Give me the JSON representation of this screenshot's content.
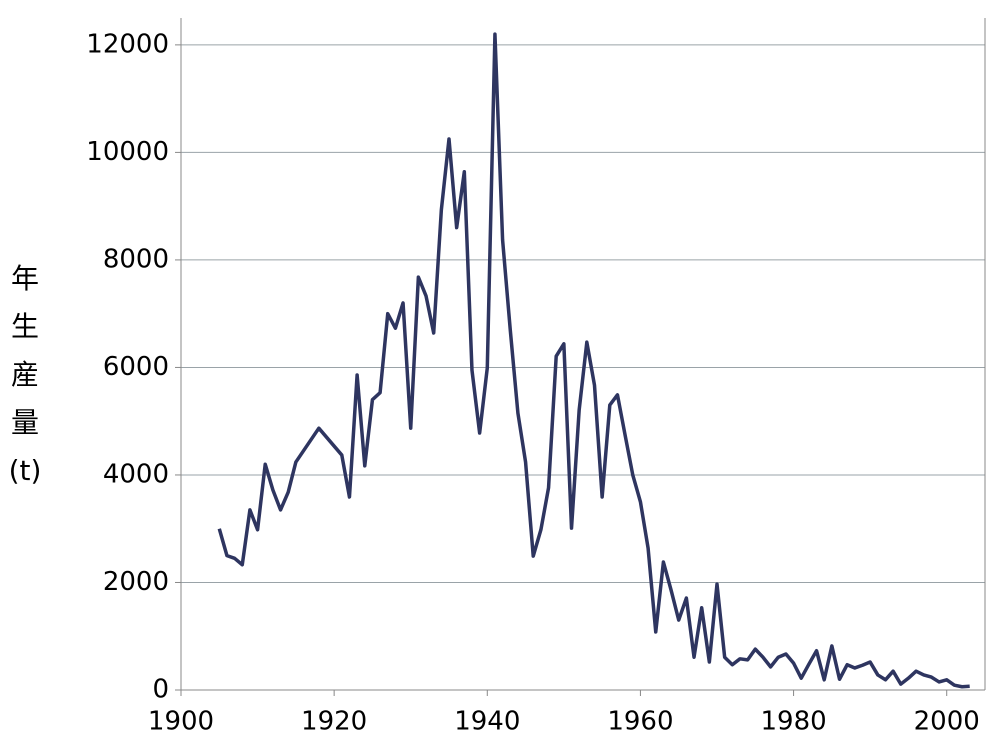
{
  "chart_data": {
    "type": "line",
    "y_label": "年生産量(t)",
    "x": [
      1905,
      1906,
      1907,
      1908,
      1909,
      1910,
      1911,
      1912,
      1913,
      1914,
      1915,
      1918,
      1921,
      1922,
      1923,
      1924,
      1925,
      1926,
      1927,
      1928,
      1929,
      1930,
      1931,
      1932,
      1933,
      1934,
      1935,
      1936,
      1937,
      1938,
      1939,
      1940,
      1941,
      1942,
      1943,
      1944,
      1945,
      1946,
      1947,
      1948,
      1949,
      1950,
      1951,
      1952,
      1953,
      1954,
      1955,
      1956,
      1957,
      1958,
      1959,
      1960,
      1961,
      1962,
      1963,
      1964,
      1965,
      1966,
      1967,
      1968,
      1969,
      1970,
      1971,
      1972,
      1973,
      1974,
      1975,
      1976,
      1977,
      1978,
      1979,
      1980,
      1981,
      1982,
      1983,
      1984,
      1985,
      1986,
      1987,
      1988,
      1989,
      1990,
      1991,
      1992,
      1993,
      1994,
      1995,
      1996,
      1997,
      1998,
      1999,
      2000,
      2001,
      2002,
      2003
    ],
    "values": [
      3000,
      2500,
      2450,
      2330,
      3350,
      2980,
      4200,
      3720,
      3350,
      3680,
      4240,
      4870,
      4370,
      3590,
      5860,
      4170,
      5400,
      5530,
      7000,
      6730,
      7200,
      4870,
      7680,
      7330,
      6640,
      8930,
      10250,
      8600,
      9640,
      5950,
      4780,
      5990,
      12200,
      8370,
      6700,
      5150,
      4240,
      2490,
      2980,
      3760,
      6210,
      6440,
      3010,
      5210,
      6470,
      5670,
      3590,
      5300,
      5490,
      4740,
      4000,
      3500,
      2640,
      1080,
      2380,
      1860,
      1300,
      1710,
      610,
      1530,
      520,
      1970,
      610,
      470,
      580,
      560,
      760,
      610,
      430,
      610,
      670,
      500,
      220,
      480,
      730,
      190,
      820,
      200,
      470,
      410,
      460,
      520,
      280,
      190,
      350,
      110,
      220,
      350,
      280,
      240,
      150,
      190,
      90,
      60,
      70
    ],
    "color": "#2e3560",
    "xlim": [
      1900,
      2005
    ],
    "xticks": [
      1900,
      1920,
      1940,
      1960,
      1980,
      2000
    ],
    "ylim": [
      0,
      12500
    ],
    "yticks": [
      0,
      2000,
      4000,
      6000,
      8000,
      10000,
      12000
    ],
    "grid": true
  }
}
